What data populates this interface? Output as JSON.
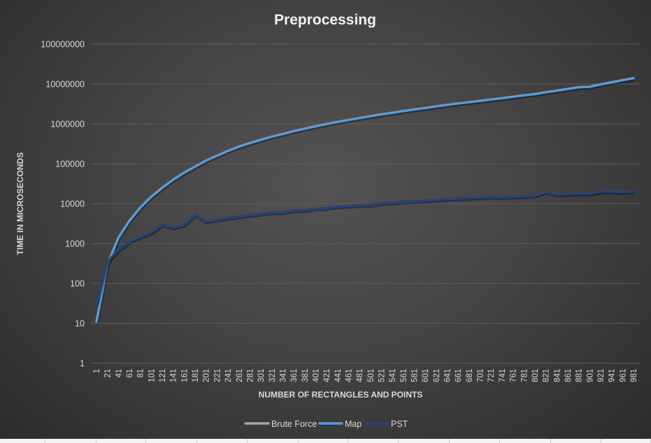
{
  "chart_data": {
    "type": "line",
    "title": "Preprocessing",
    "xlabel": "NUMBER OF RECTANGLES AND POINTS",
    "ylabel": "TIME IN MICROSECONDS",
    "yscale": "log",
    "ylim": [
      1,
      100000000
    ],
    "y_ticks": [
      "1",
      "10",
      "100",
      "1000",
      "10000",
      "100000",
      "1000000",
      "10000000",
      "100000000"
    ],
    "grid": true,
    "legend_position": "bottom",
    "categories": [
      1,
      21,
      41,
      61,
      81,
      101,
      121,
      141,
      161,
      181,
      201,
      221,
      241,
      261,
      281,
      301,
      321,
      341,
      361,
      381,
      401,
      421,
      441,
      461,
      481,
      501,
      521,
      541,
      561,
      581,
      601,
      621,
      641,
      661,
      681,
      701,
      721,
      741,
      761,
      781,
      801,
      821,
      841,
      861,
      881,
      901,
      921,
      941,
      961,
      981
    ],
    "series": [
      {
        "name": "Brute Force",
        "color": "#a5a5a5",
        "values": []
      },
      {
        "name": "Map",
        "color": "#5b9bd5",
        "values": [
          11,
          300,
          1400,
          3700,
          8000,
          15000,
          25000,
          40000,
          60000,
          85000,
          120000,
          160000,
          210000,
          270000,
          330000,
          400000,
          480000,
          560000,
          660000,
          760000,
          870000,
          990000,
          1120000,
          1260000,
          1400000,
          1560000,
          1730000,
          1900000,
          2100000,
          2300000,
          2500000,
          2750000,
          3000000,
          3250000,
          3500000,
          3800000,
          4100000,
          4400000,
          4800000,
          5200000,
          5600000,
          6200000,
          6800000,
          7500000,
          8300000,
          8500000,
          9800000,
          11000000,
          12500000,
          14000000
        ]
      },
      {
        "name": "PST",
        "color": "#264478",
        "values": [
          30,
          350,
          700,
          1100,
          1500,
          1900,
          3000,
          2500,
          3000,
          5300,
          3600,
          4000,
          4400,
          4800,
          5200,
          5600,
          6000,
          6100,
          6700,
          6900,
          7500,
          7800,
          8500,
          8800,
          9200,
          9300,
          10200,
          10500,
          11200,
          11500,
          12000,
          12500,
          13000,
          13500,
          14000,
          14200,
          14800,
          14500,
          15000,
          15500,
          16000,
          19500,
          17000,
          17500,
          18000,
          17800,
          20000,
          20000,
          19800,
          20000
        ]
      }
    ]
  },
  "legend": {
    "items": [
      {
        "label": "Brute Force",
        "color": "#a5a5a5"
      },
      {
        "label": "Map",
        "color": "#5b9bd5"
      },
      {
        "label": "PST",
        "color": "#264478"
      }
    ]
  }
}
